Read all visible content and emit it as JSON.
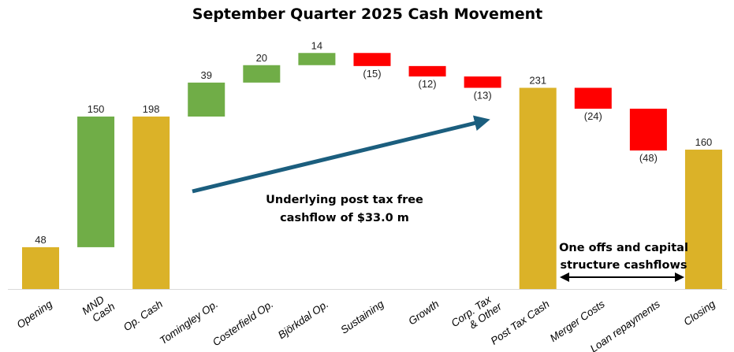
{
  "chart_data": {
    "type": "waterfall",
    "title": "September Quarter 2025 Cash Movement",
    "categories": [
      "Opening",
      "MND Cash",
      "Op. Cash",
      "Tomingley Op.",
      "Costerfield Op.",
      "Björkdal Op.",
      "Sustaining",
      "Growth",
      "Corp. Tax & Other",
      "Post Tax Cash",
      "Merger Costs",
      "Loan repayments",
      "Closing"
    ],
    "category_lines": [
      [
        "Opening"
      ],
      [
        "MND",
        "Cash"
      ],
      [
        "Op. Cash"
      ],
      [
        "Tomingley Op."
      ],
      [
        "Costerfield Op."
      ],
      [
        "Björkdal Op."
      ],
      [
        "Sustaining"
      ],
      [
        "Growth"
      ],
      [
        "Corp. Tax",
        "& Other"
      ],
      [
        "Post Tax Cash"
      ],
      [
        "Merger Costs"
      ],
      [
        "Loan repayments"
      ],
      [
        "Closing"
      ]
    ],
    "values": [
      48,
      150,
      198,
      39,
      20,
      14,
      -15,
      -12,
      -13,
      231,
      -24,
      -48,
      160
    ],
    "kinds": [
      "total",
      "delta",
      "total",
      "delta",
      "delta",
      "delta",
      "delta",
      "delta",
      "delta",
      "total",
      "delta",
      "delta",
      "total"
    ],
    "data_labels": [
      "48",
      "150",
      "198",
      "39",
      "20",
      "14",
      "(15)",
      "(12)",
      "(13)",
      "231",
      "(24)",
      "(48)",
      "160"
    ],
    "colors": {
      "total": "#DBB228",
      "increase": "#70AD47",
      "decrease": "#FF0000",
      "arrow": "#1B5E7E"
    },
    "ylim": [
      0,
      240
    ],
    "grid": false,
    "legend": "none",
    "annotations": {
      "trend_note": [
        "Underlying post tax free",
        "cashflow of $33.0 m"
      ],
      "range_note": [
        "One offs and capital",
        "structure cashflows"
      ]
    }
  }
}
